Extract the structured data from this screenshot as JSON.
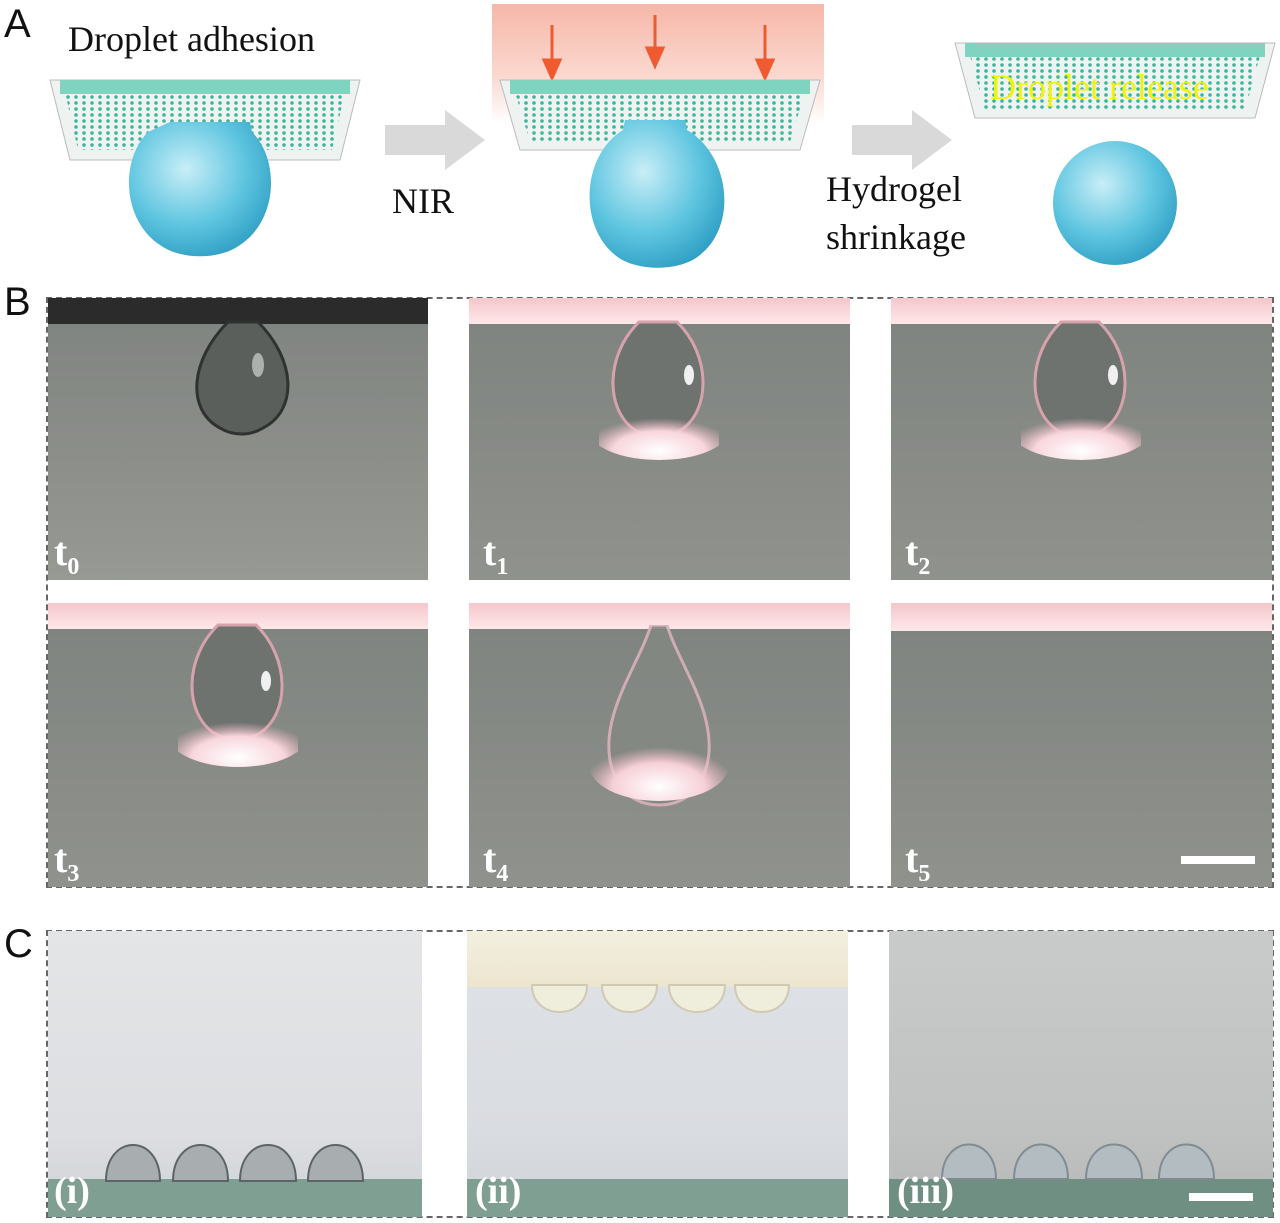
{
  "panels": {
    "a": {
      "letter": "A",
      "step1_caption": "Droplet adhesion",
      "arrow1_label": "NIR",
      "arrow2_label_line1": "Hydrogel",
      "arrow2_label_line2": "shrinkage",
      "release_caption": "Droplet release",
      "colors": {
        "droplet": "#5ec5e0",
        "particles": "#3bb59a",
        "nir_arrow": "#f05a30"
      }
    },
    "b": {
      "letter": "B",
      "frames": [
        {
          "label": "t",
          "sub": "0"
        },
        {
          "label": "t",
          "sub": "1"
        },
        {
          "label": "t",
          "sub": "2"
        },
        {
          "label": "t",
          "sub": "3"
        },
        {
          "label": "t",
          "sub": "4"
        },
        {
          "label": "t",
          "sub": "5"
        }
      ]
    },
    "c": {
      "letter": "C",
      "frames": [
        {
          "label": "(i)"
        },
        {
          "label": "(ii)"
        },
        {
          "label": "(iii)"
        }
      ]
    }
  }
}
